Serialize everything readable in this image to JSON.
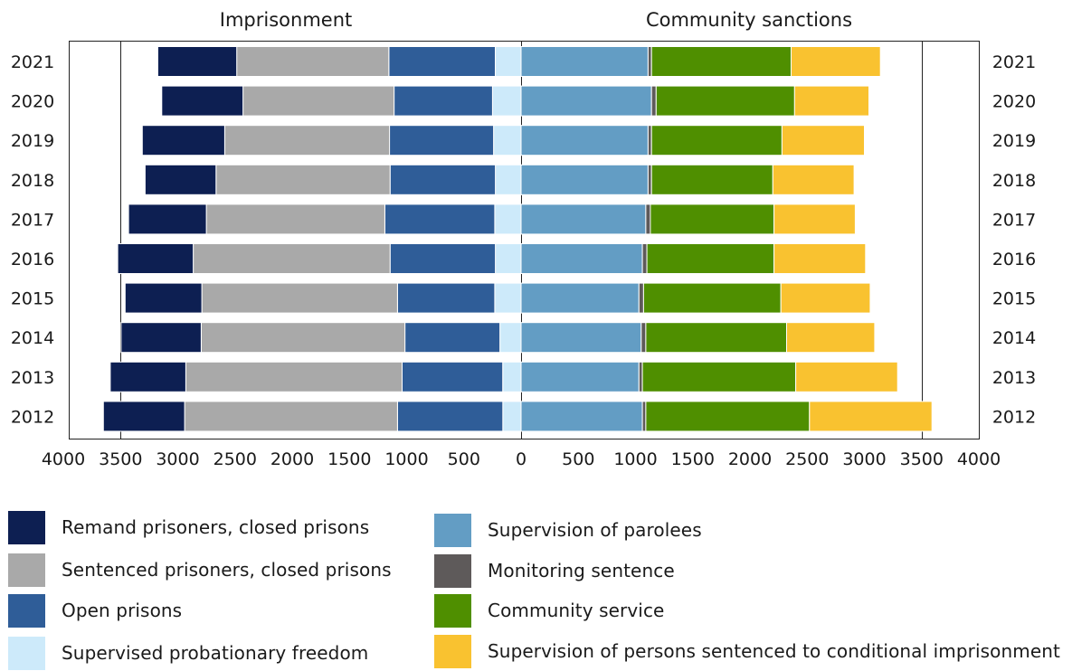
{
  "chart_data": {
    "type": "bar",
    "orientation": "horizontal",
    "stacked": true,
    "layout": "diverging-back-to-back",
    "categories": [
      "2021",
      "2020",
      "2019",
      "2018",
      "2017",
      "2016",
      "2015",
      "2014",
      "2013",
      "2012"
    ],
    "panels": [
      {
        "title": "Imprisonment",
        "direction": "left",
        "series": [
          {
            "name": "Supervised probationary freedom",
            "color": "#cdeafa",
            "values": [
              225,
              250,
              240,
              225,
              230,
              225,
              230,
              185,
              160,
              160
            ]
          },
          {
            "name": "Open prisons",
            "color": "#2f5d98",
            "values": [
              930,
              860,
              910,
              920,
              960,
              920,
              850,
              830,
              880,
              920
            ]
          },
          {
            "name": "Sentenced prisoners, closed prisons",
            "color": "#a9a9a9",
            "values": [
              1330,
              1320,
              1440,
              1520,
              1560,
              1720,
              1710,
              1780,
              1890,
              1860
            ]
          },
          {
            "name": "Remand prisoners, closed prisons",
            "color": "#0d1f52",
            "values": [
              690,
              710,
              720,
              620,
              680,
              660,
              670,
              700,
              660,
              710
            ]
          }
        ]
      },
      {
        "title": "Community sanctions",
        "direction": "right",
        "series": [
          {
            "name": "Supervision of parolees",
            "color": "#639dc4",
            "values": [
              1110,
              1140,
              1110,
              1110,
              1090,
              1060,
              1030,
              1050,
              1030,
              1060
            ]
          },
          {
            "name": "Monitoring sentence",
            "color": "#5e5a5a",
            "values": [
              30,
              40,
              30,
              30,
              40,
              40,
              40,
              40,
              30,
              30
            ]
          },
          {
            "name": "Community service",
            "color": "#4f8f00",
            "values": [
              1220,
              1210,
              1140,
              1060,
              1080,
              1110,
              1200,
              1230,
              1340,
              1430
            ]
          },
          {
            "name": "Supervision of persons sentenced to conditional imprisonment",
            "color": "#f9c230",
            "values": [
              780,
              650,
              720,
              710,
              710,
              800,
              780,
              770,
              890,
              1070
            ]
          }
        ]
      }
    ],
    "xlim": [
      0,
      4000
    ],
    "left_ticks": [
      "4000",
      "3500",
      "3000",
      "2500",
      "2000",
      "1500",
      "1000",
      "500"
    ],
    "zero_tick": "0",
    "right_ticks": [
      "500",
      "1000",
      "1500",
      "2000",
      "2500",
      "3000",
      "3500",
      "4000"
    ],
    "gridlines": [
      3500,
      0,
      3500
    ],
    "legend_position": "bottom"
  },
  "legend": [
    {
      "label": "Remand prisoners, closed prisons",
      "color": "#0d1f52"
    },
    {
      "label": "Sentenced prisoners, closed prisons",
      "color": "#a9a9a9"
    },
    {
      "label": "Open prisons",
      "color": "#2f5d98"
    },
    {
      "label": "Supervised probationary freedom",
      "color": "#cdeafa"
    },
    {
      "label": "Supervision of parolees",
      "color": "#639dc4"
    },
    {
      "label": "Monitoring sentence",
      "color": "#5e5a5a"
    },
    {
      "label": "Community service",
      "color": "#4f8f00"
    },
    {
      "label": "Supervision of persons sentenced to conditional imprisonment",
      "color": "#f9c230"
    }
  ]
}
